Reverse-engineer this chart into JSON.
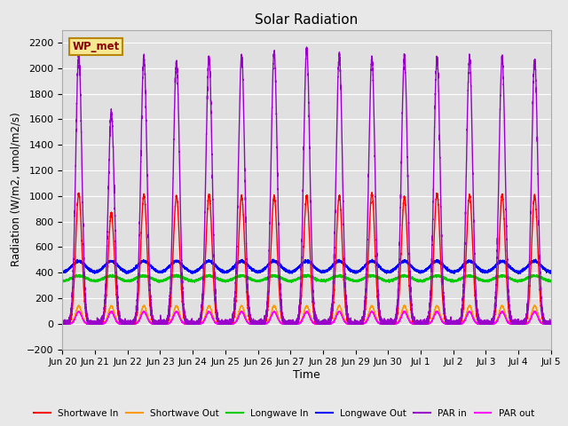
{
  "title": "Solar Radiation",
  "ylabel": "Radiation (W/m2, umol/m2/s)",
  "xlabel": "Time",
  "ylim": [
    -200,
    2300
  ],
  "yticks": [
    -200,
    0,
    200,
    400,
    600,
    800,
    1000,
    1200,
    1400,
    1600,
    1800,
    2000,
    2200
  ],
  "xtick_labels": [
    "Jun 20",
    "Jun 21",
    "Jun 22",
    "Jun 23",
    "Jun 24",
    "Jun 25",
    "Jun 26",
    "Jun 27",
    "Jun 28",
    "Jun 29",
    "Jun 30",
    "Jul 1",
    "Jul 2",
    "Jul 3",
    "Jul 4",
    "Jul 5"
  ],
  "legend_labels": [
    "Shortwave In",
    "Shortwave Out",
    "Longwave In",
    "Longwave Out",
    "PAR in",
    "PAR out"
  ],
  "legend_colors": [
    "#ff0000",
    "#ff9900",
    "#00cc00",
    "#0000ff",
    "#9900cc",
    "#ff00ff"
  ],
  "station_label": "WP_met",
  "fig_bg_color": "#e8e8e8",
  "plot_bg_color": "#e0e0e0",
  "n_days": 15
}
